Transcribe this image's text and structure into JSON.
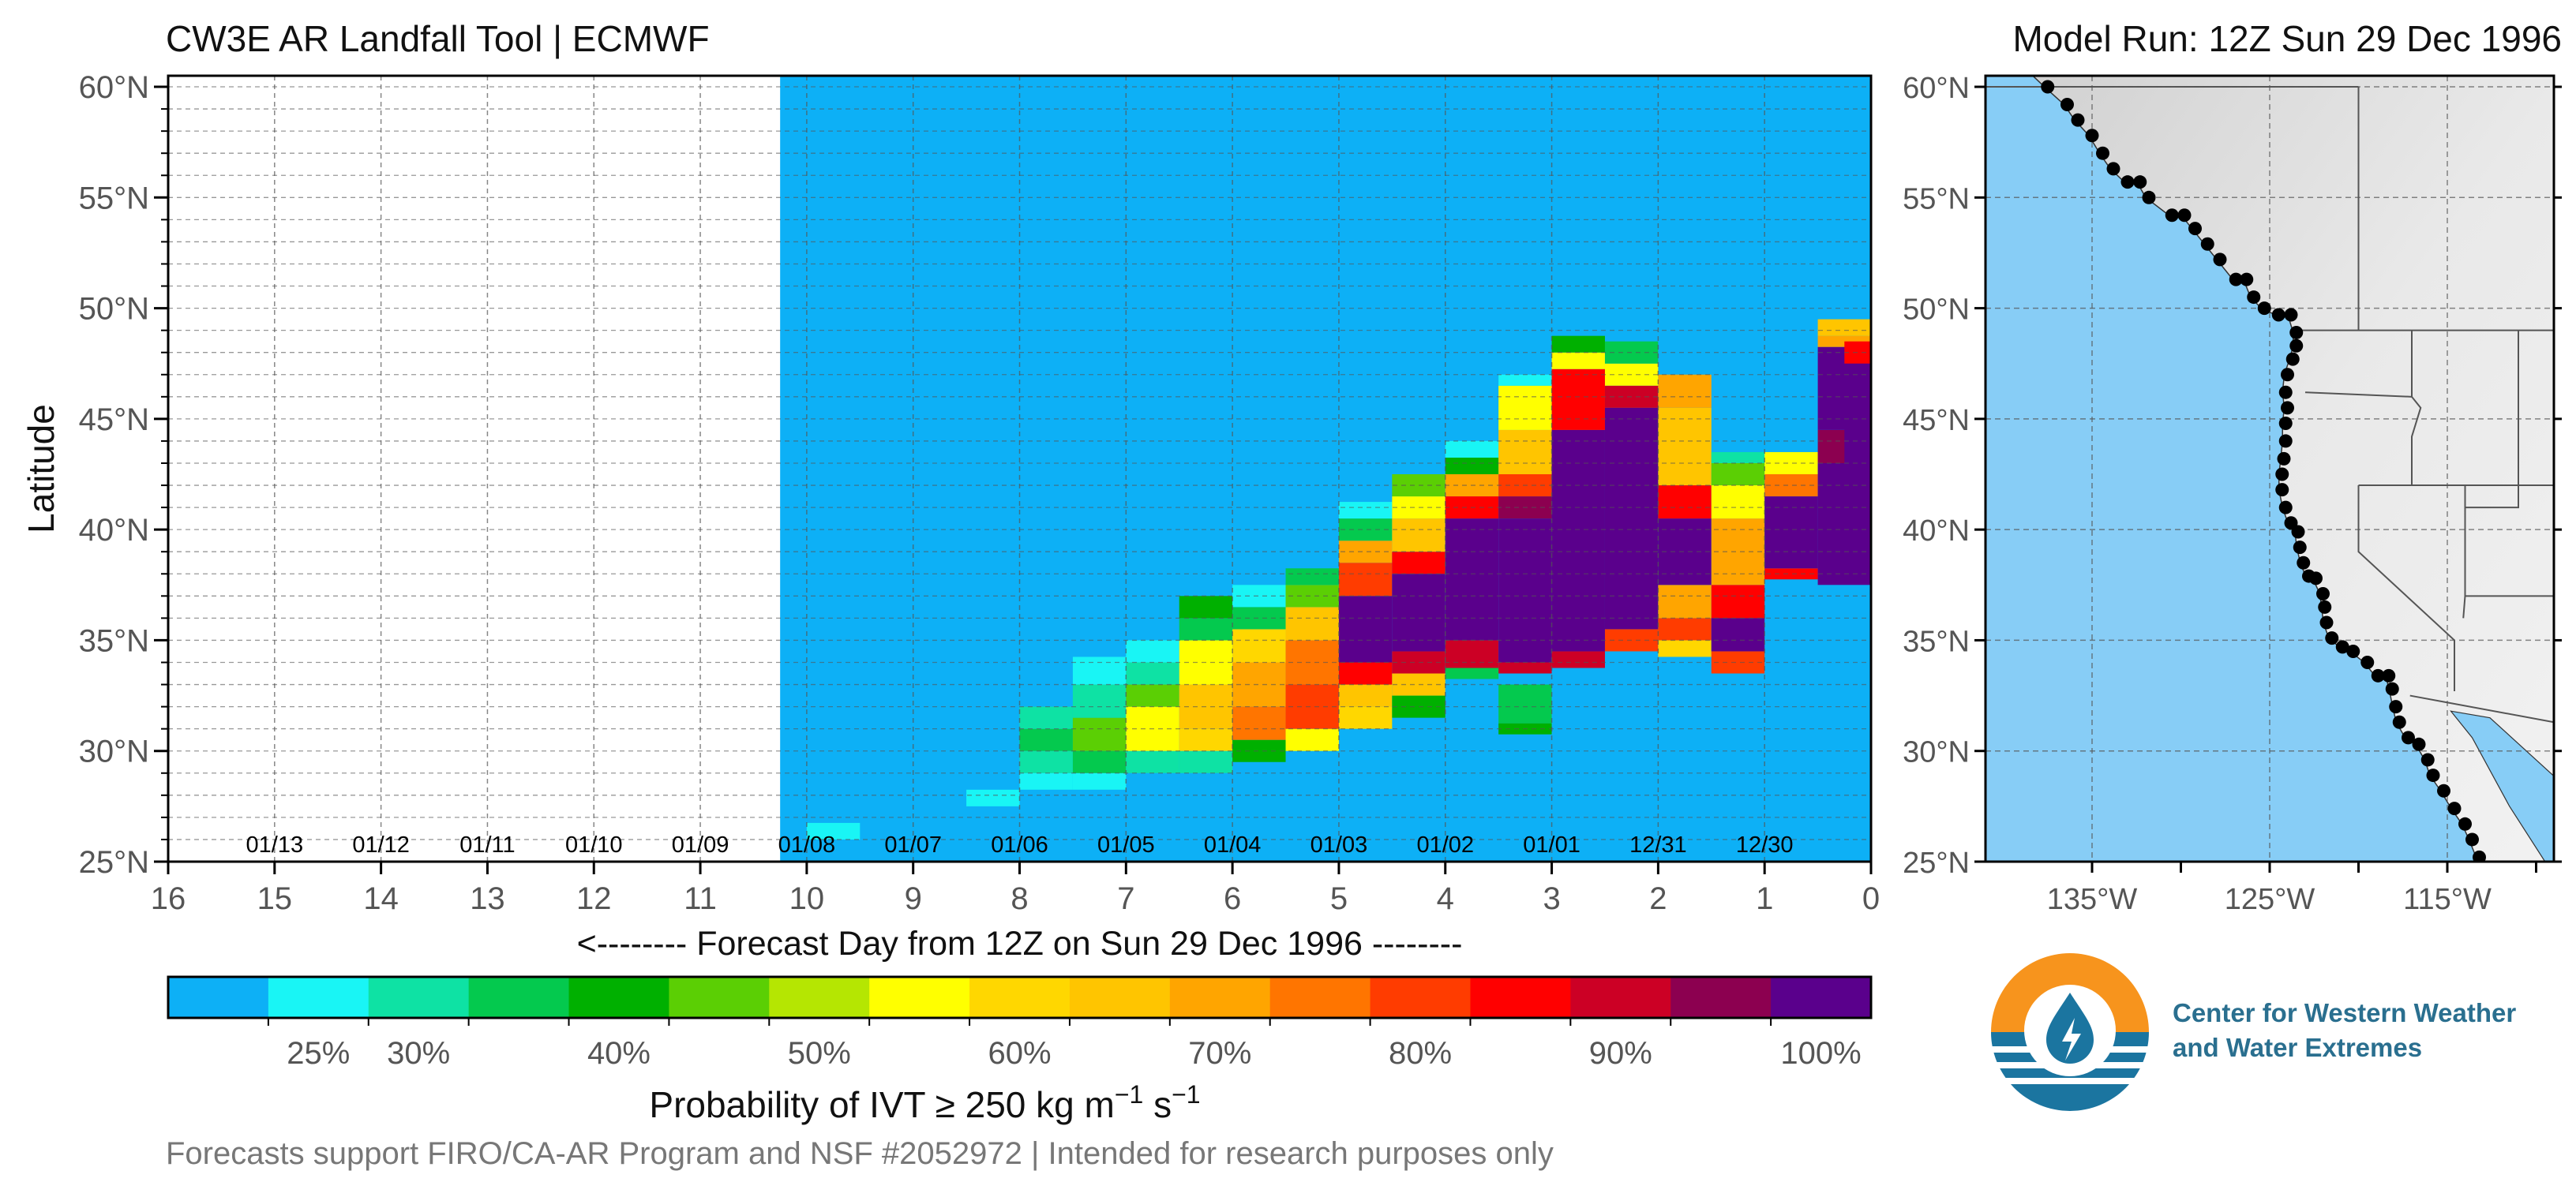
{
  "header": {
    "title": "CW3E AR Landfall Tool | ECMWF",
    "model_run": "Model Run: 12Z Sun 29 Dec 1996"
  },
  "footer": {
    "note": "Forecasts support FIRO/CA-AR Program and NSF #2052972 | Intended for research purposes only"
  },
  "logo": {
    "line1": "Center for Western Weather",
    "line2": "and Water Extremes"
  },
  "colors": {
    "background_field": "#0db0f6",
    "grid": "#555555",
    "palette": [
      "#0db0f6",
      "#19f5f5",
      "#0ee2a4",
      "#04c94e",
      "#00b000",
      "#5bcf04",
      "#b5e602",
      "#ffff00",
      "#ffd700",
      "#ffc500",
      "#ffa500",
      "#ff7500",
      "#ff3c00",
      "#ff0000",
      "#cc0025",
      "#8c0050",
      "#5a008c"
    ]
  },
  "chart_data": [
    {
      "type": "heatmap",
      "title": "CW3E AR Landfall Tool | ECMWF",
      "xlabel": "<-------- Forecast Day from 12Z on Sun 29 Dec 1996 --------",
      "ylabel": "Latitude",
      "xlim": [
        16,
        0
      ],
      "ylim": [
        25,
        60.5
      ],
      "x_ticks": [
        16,
        15,
        14,
        13,
        12,
        11,
        10,
        9,
        8,
        7,
        6,
        5,
        4,
        3,
        2,
        1,
        0
      ],
      "y_ticks": [
        {
          "value": 25,
          "label": "25°N"
        },
        {
          "value": 30,
          "label": "30°N"
        },
        {
          "value": 35,
          "label": "35°N"
        },
        {
          "value": 40,
          "label": "40°N"
        },
        {
          "value": 45,
          "label": "45°N"
        },
        {
          "value": 50,
          "label": "50°N"
        },
        {
          "value": 55,
          "label": "55°N"
        },
        {
          "value": 60,
          "label": "60°N"
        }
      ],
      "date_labels": [
        {
          "label": "01/13",
          "x": 15
        },
        {
          "label": "01/12",
          "x": 14
        },
        {
          "label": "01/11",
          "x": 13
        },
        {
          "label": "01/10",
          "x": 12
        },
        {
          "label": "01/09",
          "x": 11
        },
        {
          "label": "01/08",
          "x": 10
        },
        {
          "label": "01/07",
          "x": 9
        },
        {
          "label": "01/06",
          "x": 8
        },
        {
          "label": "01/05",
          "x": 7
        },
        {
          "label": "01/04",
          "x": 6
        },
        {
          "label": "01/03",
          "x": 5
        },
        {
          "label": "01/02",
          "x": 4
        },
        {
          "label": "01/01",
          "x": 3
        },
        {
          "label": "12/31",
          "x": 2
        },
        {
          "label": "12/30",
          "x": 1
        }
      ],
      "forecast_start_day": 10.25,
      "cell_width_days": 0.5,
      "columns": [
        {
          "x": 9.75,
          "levels": [
            [
              26.0,
              26.75,
              1
            ]
          ]
        },
        {
          "x": 8.25,
          "levels": [
            [
              27.5,
              28.25,
              1
            ]
          ]
        },
        {
          "x": 7.75,
          "levels": [
            [
              28.25,
              29.0,
              1
            ],
            [
              29.0,
              30.0,
              2
            ],
            [
              30.0,
              31.0,
              3
            ],
            [
              31.0,
              32.0,
              2
            ]
          ]
        },
        {
          "x": 7.25,
          "levels": [
            [
              28.25,
              29.0,
              1
            ],
            [
              29.0,
              30.0,
              3
            ],
            [
              30.0,
              31.5,
              5
            ],
            [
              31.5,
              33.0,
              2
            ],
            [
              33.0,
              34.25,
              1
            ]
          ]
        },
        {
          "x": 6.75,
          "levels": [
            [
              29.0,
              30.0,
              2
            ],
            [
              30.0,
              32.0,
              7
            ],
            [
              32.0,
              33.0,
              5
            ],
            [
              33.0,
              34.0,
              2
            ],
            [
              34.0,
              35.0,
              1
            ]
          ]
        },
        {
          "x": 6.25,
          "levels": [
            [
              29.0,
              30.0,
              2
            ],
            [
              30.0,
              31.0,
              8
            ],
            [
              31.0,
              33.0,
              9
            ],
            [
              33.0,
              35.0,
              7
            ],
            [
              35.0,
              36.0,
              3
            ],
            [
              36.0,
              37.0,
              4
            ]
          ]
        },
        {
          "x": 5.75,
          "levels": [
            [
              29.5,
              30.5,
              4
            ],
            [
              30.5,
              32.0,
              11
            ],
            [
              32.0,
              34.0,
              10
            ],
            [
              34.0,
              35.5,
              8
            ],
            [
              35.5,
              36.5,
              3
            ],
            [
              36.5,
              37.5,
              1
            ]
          ]
        },
        {
          "x": 5.25,
          "levels": [
            [
              30.0,
              31.0,
              7
            ],
            [
              31.0,
              33.0,
              12
            ],
            [
              33.0,
              35.0,
              11
            ],
            [
              35.0,
              36.5,
              9
            ],
            [
              36.5,
              37.5,
              5
            ],
            [
              37.5,
              38.25,
              3
            ]
          ]
        },
        {
          "x": 4.75,
          "levels": [
            [
              31.0,
              32.0,
              8
            ],
            [
              32.0,
              33.0,
              9
            ],
            [
              33.0,
              34.0,
              13
            ],
            [
              34.0,
              37.0,
              16
            ],
            [
              37.0,
              38.5,
              12
            ],
            [
              38.5,
              39.5,
              10
            ],
            [
              39.5,
              40.5,
              3
            ],
            [
              40.5,
              41.25,
              1
            ]
          ]
        },
        {
          "x": 4.25,
          "levels": [
            [
              31.5,
              32.5,
              4
            ],
            [
              32.5,
              33.5,
              9
            ],
            [
              33.5,
              34.5,
              14
            ],
            [
              34.5,
              38.0,
              16
            ],
            [
              38.0,
              39.0,
              13
            ],
            [
              39.0,
              40.5,
              9
            ],
            [
              40.5,
              41.5,
              7
            ],
            [
              41.5,
              42.5,
              5
            ]
          ]
        },
        {
          "x": 3.75,
          "levels": [
            [
              33.25,
              33.75,
              3
            ],
            [
              33.75,
              35.0,
              14
            ],
            [
              35.0,
              40.5,
              16
            ],
            [
              40.5,
              41.5,
              13
            ],
            [
              41.5,
              42.5,
              10
            ],
            [
              42.5,
              43.25,
              4
            ],
            [
              43.25,
              44.0,
              1
            ]
          ]
        },
        {
          "x": 3.25,
          "levels": [
            [
              30.75,
              31.25,
              4
            ],
            [
              31.25,
              33.0,
              3
            ],
            [
              33.5,
              34.0,
              14
            ],
            [
              34.0,
              40.5,
              16
            ],
            [
              40.5,
              41.5,
              15
            ],
            [
              41.5,
              42.5,
              12
            ],
            [
              42.5,
              44.5,
              9
            ],
            [
              44.5,
              46.5,
              7
            ],
            [
              46.5,
              47.0,
              1
            ]
          ]
        },
        {
          "x": 2.75,
          "levels": [
            [
              33.75,
              34.5,
              14
            ],
            [
              34.5,
              44.5,
              16
            ],
            [
              44.5,
              47.25,
              13
            ],
            [
              47.25,
              48.0,
              7
            ],
            [
              48.0,
              48.75,
              4
            ]
          ]
        },
        {
          "x": 2.25,
          "levels": [
            [
              34.5,
              35.5,
              12
            ],
            [
              35.5,
              45.5,
              16
            ],
            [
              45.5,
              46.5,
              14
            ],
            [
              46.5,
              47.5,
              7
            ],
            [
              47.5,
              48.5,
              3
            ]
          ]
        },
        {
          "x": 1.75,
          "levels": [
            [
              34.25,
              35.0,
              8
            ],
            [
              35.0,
              36.0,
              12
            ],
            [
              36.0,
              37.5,
              10
            ],
            [
              37.5,
              40.5,
              16
            ],
            [
              40.5,
              42.0,
              13
            ],
            [
              42.0,
              45.5,
              9
            ],
            [
              45.5,
              47.0,
              10
            ]
          ]
        },
        {
          "x": 1.25,
          "levels": [
            [
              33.5,
              34.5,
              12
            ],
            [
              34.5,
              36.0,
              16
            ],
            [
              36.0,
              37.5,
              13
            ],
            [
              37.5,
              40.5,
              10
            ],
            [
              40.5,
              42.0,
              7
            ],
            [
              42.0,
              43.0,
              5
            ],
            [
              43.0,
              43.5,
              2
            ]
          ]
        },
        {
          "x": 0.75,
          "levels": [
            [
              37.75,
              38.25,
              13
            ],
            [
              38.25,
              41.5,
              16
            ],
            [
              41.5,
              42.5,
              11
            ],
            [
              42.5,
              43.5,
              7
            ]
          ]
        },
        {
          "x": 0.25,
          "levels": [
            [
              37.5,
              43.0,
              16
            ],
            [
              43.0,
              44.5,
              15
            ],
            [
              44.5,
              48.25,
              16
            ],
            [
              48.25,
              48.75,
              10
            ],
            [
              48.75,
              49.5,
              9
            ]
          ]
        },
        {
          "x": 0.0,
          "levels": [
            [
              39.5,
              47.5,
              16
            ],
            [
              47.5,
              48.5,
              13
            ]
          ]
        }
      ]
    },
    {
      "type": "heatmap",
      "title": "Probability of IVT ≥ 250 kg m⁻¹ s⁻¹",
      "categories": [
        "<25%",
        "25%",
        "30%",
        "35%",
        "40%",
        "45%",
        "50%",
        "55%",
        "60%",
        "65%",
        "70%",
        "75%",
        "80%",
        "85%",
        "90%",
        "95%",
        "100%"
      ],
      "tick_labels": [
        "25%",
        "30%",
        "40%",
        "50%",
        "60%",
        "70%",
        "80%",
        "90%",
        "100%"
      ],
      "label_main": "Probability of IVT  ≥  250 kg m",
      "label_sup1": "−1",
      "label_mid": " s",
      "label_sup2": "−1"
    },
    {
      "type": "scatter",
      "title": "Model Run: 12Z Sun 29 Dec 1996",
      "x_ticks": [
        {
          "value": -135,
          "label": "135°W"
        },
        {
          "value": -125,
          "label": "125°W"
        },
        {
          "value": -115,
          "label": "115°W"
        }
      ],
      "y_ticks": [
        {
          "value": 25,
          "label": "25°N"
        },
        {
          "value": 30,
          "label": "30°N"
        },
        {
          "value": 35,
          "label": "35°N"
        },
        {
          "value": 40,
          "label": "40°N"
        },
        {
          "value": 45,
          "label": "45°N"
        },
        {
          "value": 50,
          "label": "50°N"
        },
        {
          "value": 55,
          "label": "55°N"
        },
        {
          "value": 60,
          "label": "60°N"
        }
      ],
      "xlim": [
        -141,
        -109
      ],
      "ylim": [
        25,
        60.5
      ],
      "landfall_points": [
        [
          -137.5,
          60.0
        ],
        [
          -136.4,
          59.2
        ],
        [
          -135.8,
          58.5
        ],
        [
          -135.0,
          57.8
        ],
        [
          -134.4,
          57.0
        ],
        [
          -133.8,
          56.3
        ],
        [
          -133.0,
          55.7
        ],
        [
          -132.3,
          55.7
        ],
        [
          -131.8,
          55.0
        ],
        [
          -130.5,
          54.2
        ],
        [
          -129.8,
          54.2
        ],
        [
          -129.2,
          53.6
        ],
        [
          -128.5,
          52.9
        ],
        [
          -127.8,
          52.2
        ],
        [
          -126.9,
          51.3
        ],
        [
          -126.3,
          51.3
        ],
        [
          -125.9,
          50.5
        ],
        [
          -125.3,
          50.0
        ],
        [
          -124.5,
          49.7
        ],
        [
          -123.8,
          49.7
        ],
        [
          -123.5,
          48.9
        ],
        [
          -123.5,
          48.3
        ],
        [
          -123.7,
          47.7
        ],
        [
          -124.0,
          47.0
        ],
        [
          -124.1,
          46.2
        ],
        [
          -124.0,
          45.5
        ],
        [
          -124.1,
          44.8
        ],
        [
          -124.1,
          44.0
        ],
        [
          -124.2,
          43.2
        ],
        [
          -124.3,
          42.5
        ],
        [
          -124.3,
          41.8
        ],
        [
          -124.1,
          41.0
        ],
        [
          -123.8,
          40.3
        ],
        [
          -123.4,
          39.9
        ],
        [
          -123.3,
          39.2
        ],
        [
          -123.1,
          38.5
        ],
        [
          -122.8,
          37.9
        ],
        [
          -122.4,
          37.8
        ],
        [
          -122.0,
          37.1
        ],
        [
          -121.9,
          36.5
        ],
        [
          -121.8,
          35.8
        ],
        [
          -121.5,
          35.1
        ],
        [
          -120.9,
          34.7
        ],
        [
          -120.3,
          34.5
        ],
        [
          -119.5,
          34.0
        ],
        [
          -118.9,
          33.4
        ],
        [
          -118.3,
          33.4
        ],
        [
          -118.1,
          32.8
        ],
        [
          -117.9,
          32.0
        ],
        [
          -117.7,
          31.3
        ],
        [
          -117.2,
          30.6
        ],
        [
          -116.6,
          30.3
        ],
        [
          -116.1,
          29.6
        ],
        [
          -115.8,
          28.9
        ],
        [
          -115.2,
          28.2
        ],
        [
          -114.6,
          27.4
        ],
        [
          -114.0,
          26.7
        ],
        [
          -113.6,
          26.0
        ],
        [
          -113.2,
          25.2
        ]
      ]
    }
  ]
}
